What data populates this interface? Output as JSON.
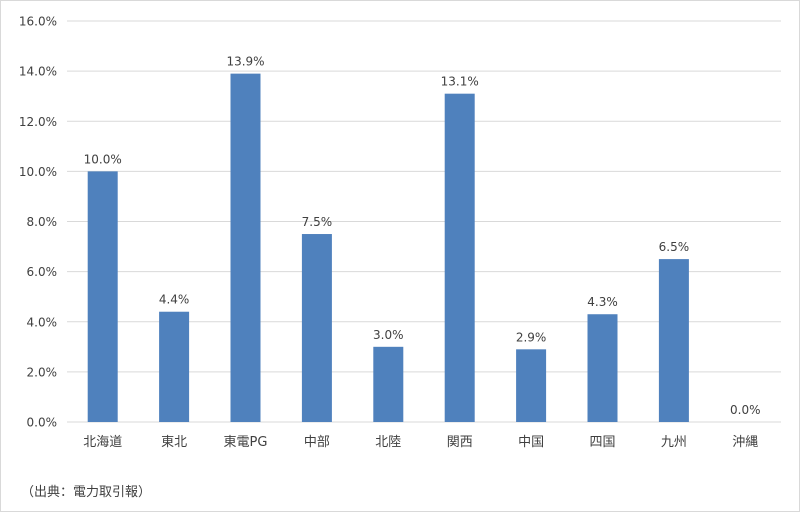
{
  "chart_data": {
    "type": "bar",
    "categories": [
      "北海道",
      "東北",
      "東電PG",
      "中部",
      "北陸",
      "関西",
      "中国",
      "四国",
      "九州",
      "沖縄"
    ],
    "values": [
      10.0,
      4.4,
      13.9,
      7.5,
      3.0,
      13.1,
      2.9,
      4.3,
      6.5,
      0.0
    ],
    "data_labels": [
      "10.0%",
      "4.4%",
      "13.9%",
      "7.5%",
      "3.0%",
      "13.1%",
      "2.9%",
      "4.3%",
      "6.5%",
      "0.0%"
    ],
    "y_ticks": [
      0,
      2,
      4,
      6,
      8,
      10,
      12,
      14,
      16
    ],
    "y_tick_labels": [
      "0.0%",
      "2.0%",
      "4.0%",
      "6.0%",
      "8.0%",
      "10.0%",
      "12.0%",
      "14.0%",
      "16.0%"
    ],
    "ylim": [
      0,
      16
    ],
    "grid": true,
    "legend": "none",
    "bar_color": "#4f81bd",
    "grid_color": "#d9d9d9",
    "title": "",
    "xlabel": "",
    "ylabel": ""
  },
  "source_note": "（出典：電力取引報）"
}
